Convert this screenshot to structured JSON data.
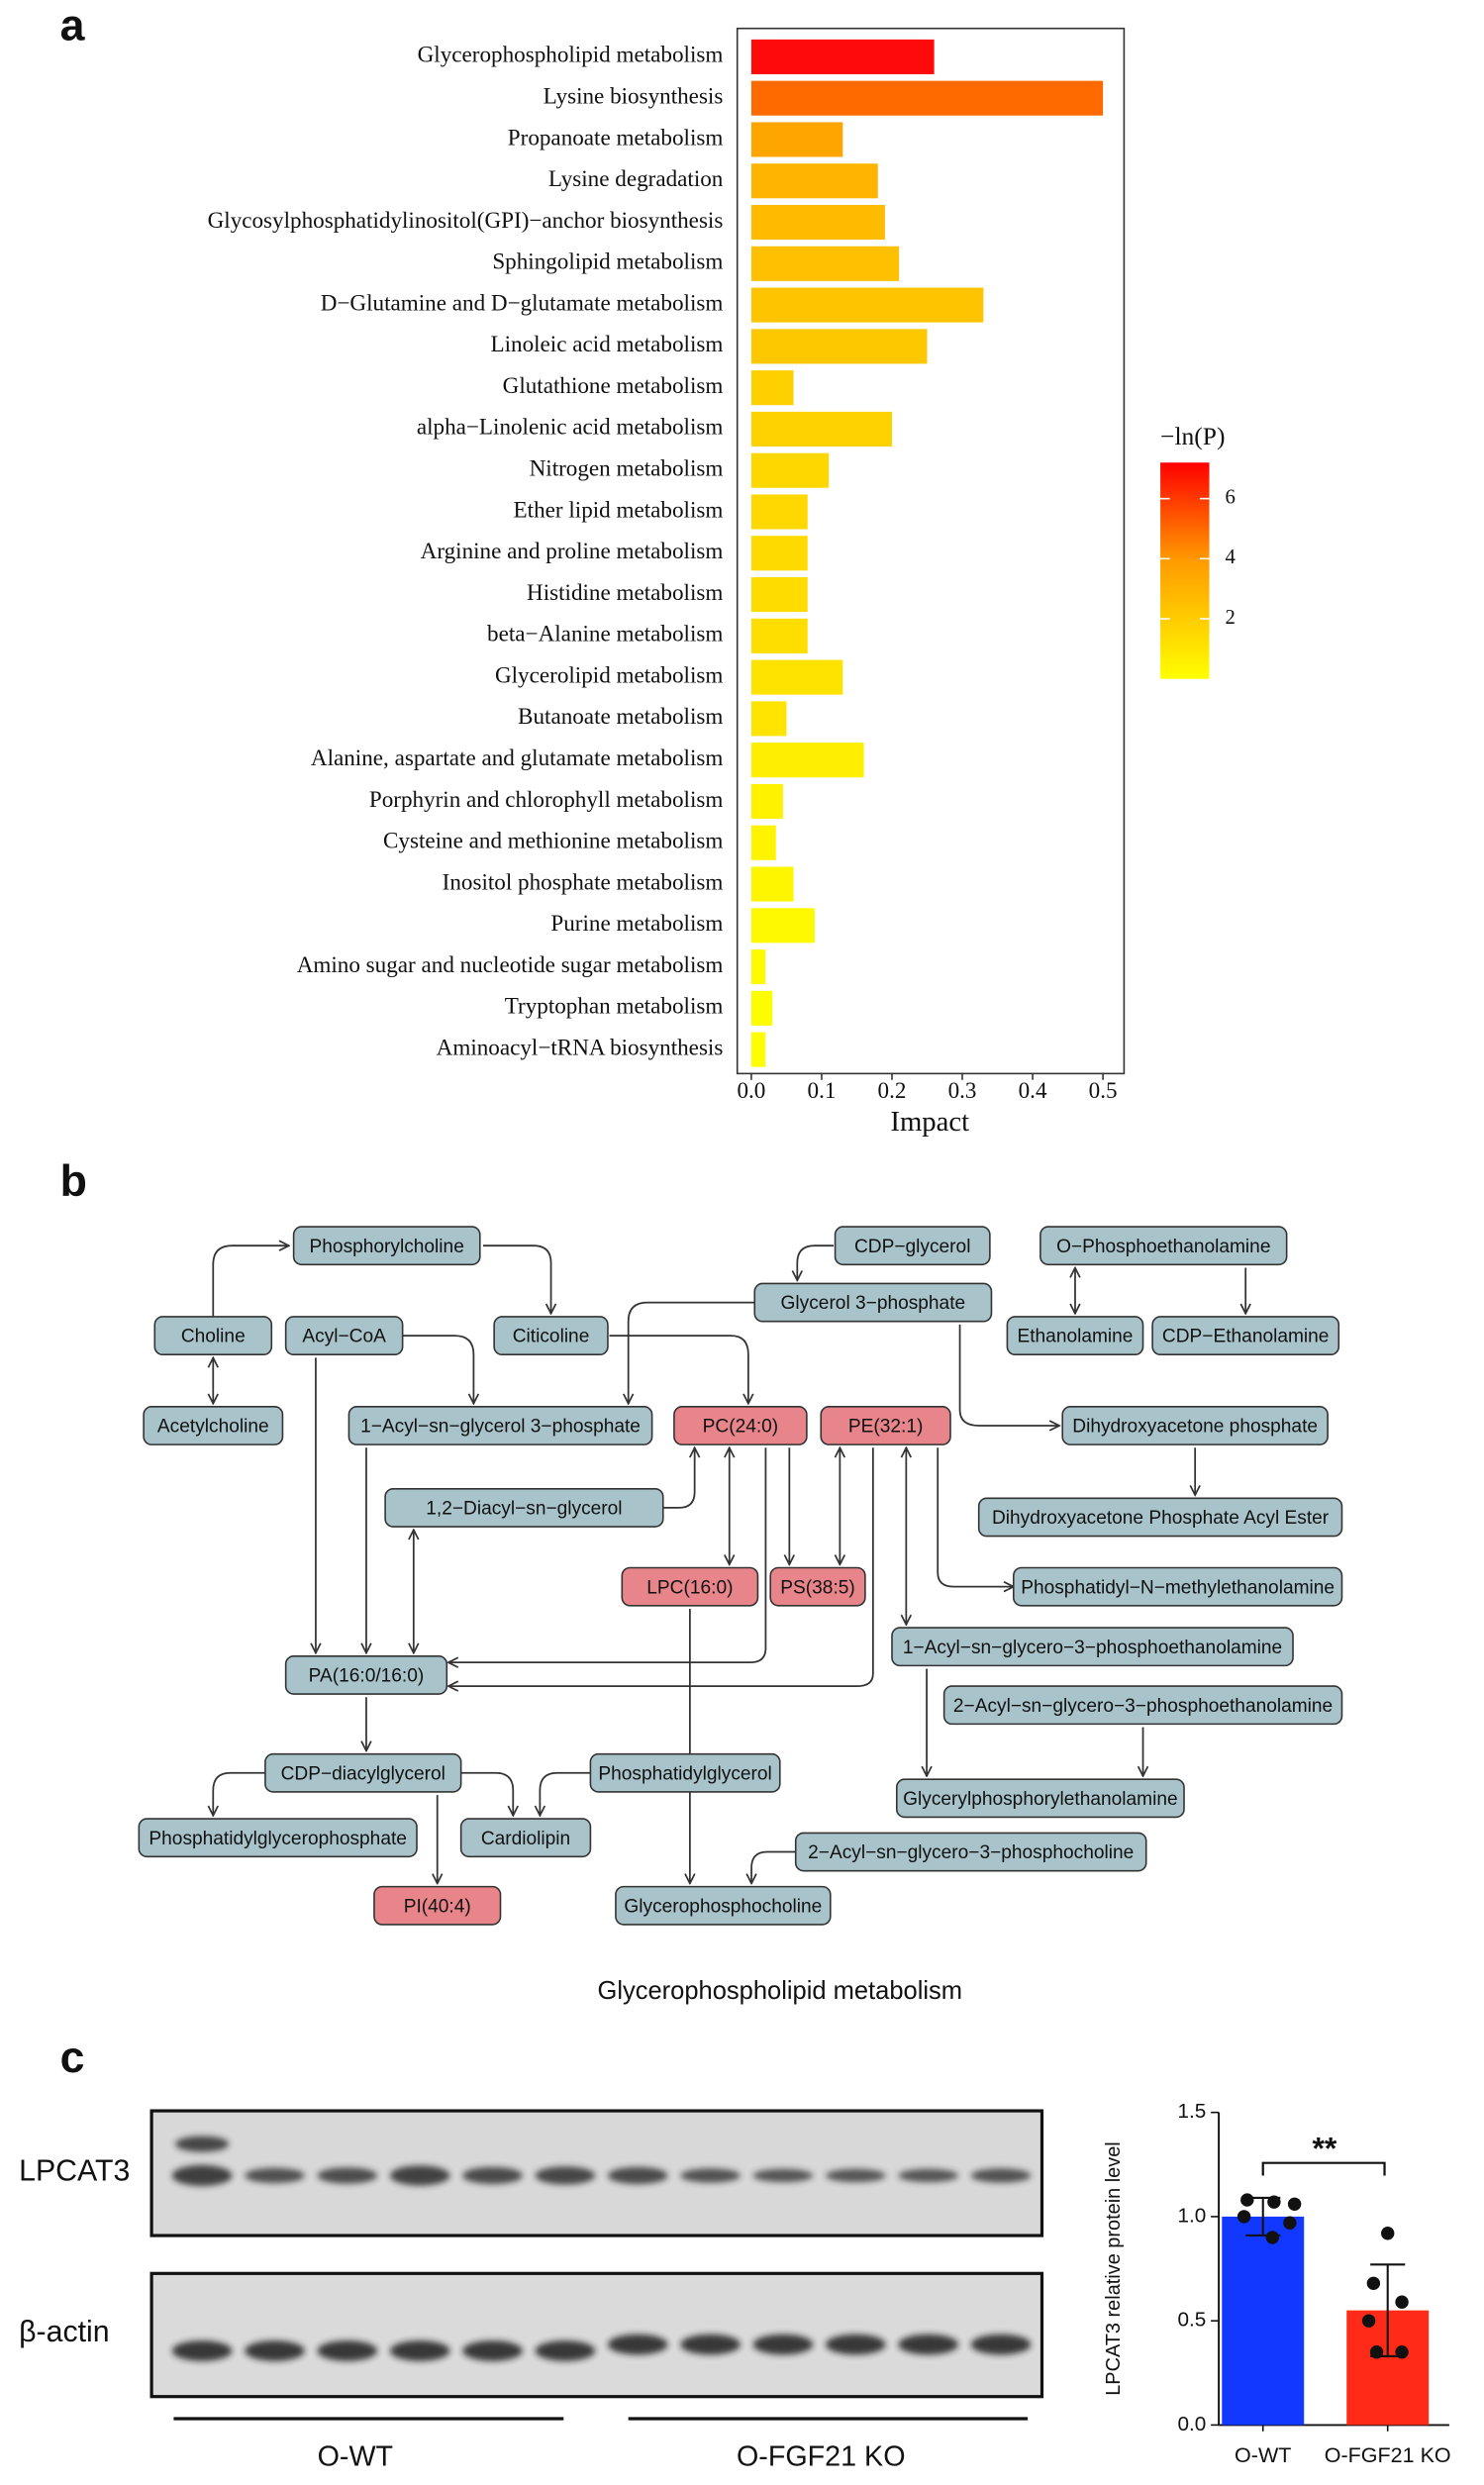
{
  "panel_labels": [
    "a",
    "b",
    "c"
  ],
  "chart_data": [
    {
      "type": "barh",
      "categories": [
        "Glycerophospholipid metabolism",
        "Lysine biosynthesis",
        "Propanoate metabolism",
        "Lysine degradation",
        "Glycosylphosphatidylinositol(GPI)−anchor biosynthesis",
        "Sphingolipid metabolism",
        "D−Glutamine and D−glutamate metabolism",
        "Linoleic acid metabolism",
        "Glutathione metabolism",
        "alpha−Linolenic acid metabolism",
        "Nitrogen metabolism",
        "Ether lipid metabolism",
        "Arginine and proline metabolism",
        "Histidine metabolism",
        "beta−Alanine metabolism",
        "Glycerolipid metabolism",
        "Butanoate metabolism",
        "Alanine, aspartate and glutamate metabolism",
        "Porphyrin and chlorophyll metabolism",
        "Cysteine and methionine metabolism",
        "Inositol phosphate metabolism",
        "Purine metabolism",
        "Amino sugar and nucleotide sugar metabolism",
        "Tryptophan metabolism",
        "Aminoacyl−tRNA biosynthesis"
      ],
      "values": [
        0.26,
        0.5,
        0.13,
        0.18,
        0.19,
        0.21,
        0.33,
        0.25,
        0.06,
        0.2,
        0.11,
        0.08,
        0.08,
        0.08,
        0.08,
        0.13,
        0.05,
        0.16,
        0.045,
        0.035,
        0.06,
        0.09,
        0.02,
        0.03,
        0.02
      ],
      "colors": [
        "#fe0a0a",
        "#fe6a00",
        "#fea500",
        "#feb400",
        "#febb00",
        "#fec000",
        "#fec400",
        "#fec800",
        "#fed000",
        "#fed200",
        "#fed600",
        "#fed800",
        "#feda00",
        "#fedc00",
        "#fedd00",
        "#fee200",
        "#fee400",
        "#feee00",
        "#fef200",
        "#fef400",
        "#fef600",
        "#fef800",
        "#fefa00",
        "#fefc00",
        "#fefe00"
      ],
      "xlabel": "Impact",
      "xlim": [
        -0.02,
        0.53
      ],
      "xticks": [
        {
          "value": 0,
          "label": "0.0"
        },
        0.1,
        0.2,
        0.3,
        0.4,
        0.5
      ],
      "colorbar": {
        "title": "−ln(P)",
        "lim": [
          0,
          7.2
        ],
        "ticks": [
          2,
          4,
          6
        ],
        "low_color": "#ffff00",
        "mid_color": "#ff9a00",
        "high_color": "#ff0000"
      }
    },
    {
      "type": "bar",
      "categories": [
        "O-WT",
        "O-FGF21 KO"
      ],
      "values": [
        1.0,
        0.55
      ],
      "errors": [
        0.09,
        0.22
      ],
      "colors": [
        "#1237ff",
        "#ff2a17"
      ],
      "points": [
        [
          1.08,
          1.07,
          1.06,
          1.0,
          0.97,
          0.9
        ],
        [
          0.92,
          0.68,
          0.59,
          0.5,
          0.35,
          0.35
        ]
      ],
      "ylabel": "LPCAT3 relative protein level",
      "ylim": [
        0,
        1.5
      ],
      "yticks": [
        {
          "value": 0,
          "label": "0.0"
        },
        0.5,
        {
          "value": 1,
          "label": "1.0"
        },
        1.5
      ],
      "annotation": "**"
    }
  ],
  "pathway": {
    "title": "Glycerophospholipid metabolism",
    "nodes": [
      {
        "label": "Phosphorylcholine",
        "highlighted": false
      },
      {
        "label": "CDP−glycerol",
        "highlighted": false
      },
      {
        "label": "O−Phosphoethanolamine",
        "highlighted": false
      },
      {
        "label": "Glycerol 3−phosphate",
        "highlighted": false
      },
      {
        "label": "Choline",
        "highlighted": false
      },
      {
        "label": "Acyl−CoA",
        "highlighted": false
      },
      {
        "label": "Citicoline",
        "highlighted": false
      },
      {
        "label": "Ethanolamine",
        "highlighted": false
      },
      {
        "label": "CDP−Ethanolamine",
        "highlighted": false
      },
      {
        "label": "Acetylcholine",
        "highlighted": false
      },
      {
        "label": "1−Acyl−sn−glycerol 3−phosphate",
        "highlighted": false
      },
      {
        "label": "PC(24:0)",
        "highlighted": true
      },
      {
        "label": "PE(32:1)",
        "highlighted": true
      },
      {
        "label": "Dihydroxyacetone phosphate",
        "highlighted": false
      },
      {
        "label": "1,2−Diacyl−sn−glycerol",
        "highlighted": false
      },
      {
        "label": "Dihydroxyacetone Phosphate Acyl Ester",
        "highlighted": false
      },
      {
        "label": "LPC(16:0)",
        "highlighted": true
      },
      {
        "label": "PS(38:5)",
        "highlighted": true
      },
      {
        "label": "Phosphatidyl−N−methylethanolamine",
        "highlighted": false
      },
      {
        "label": "1−Acyl−sn−glycero−3−phosphoethanolamine",
        "highlighted": false
      },
      {
        "label": "PA(16:0/16:0)",
        "highlighted": false
      },
      {
        "label": "2−Acyl−sn−glycero−3−phosphoethanolamine",
        "highlighted": false
      },
      {
        "label": "CDP−diacylglycerol",
        "highlighted": false
      },
      {
        "label": "Phosphatidylglycerol",
        "highlighted": false
      },
      {
        "label": "Phosphatidylglycerophosphate",
        "highlighted": false
      },
      {
        "label": "Cardiolipin",
        "highlighted": false
      },
      {
        "label": "Glycerylphosphorylethanolamine",
        "highlighted": false
      },
      {
        "label": "2−Acyl−sn−glycero−3−phosphocholine",
        "highlighted": false
      },
      {
        "label": "PI(40:4)",
        "highlighted": true
      },
      {
        "label": "Glycerophosphocholine",
        "highlighted": false
      }
    ]
  },
  "blot": {
    "rows": [
      "LPCAT3",
      "β-actin"
    ],
    "groups": [
      "O-WT",
      "O-FGF21 KO"
    ]
  }
}
